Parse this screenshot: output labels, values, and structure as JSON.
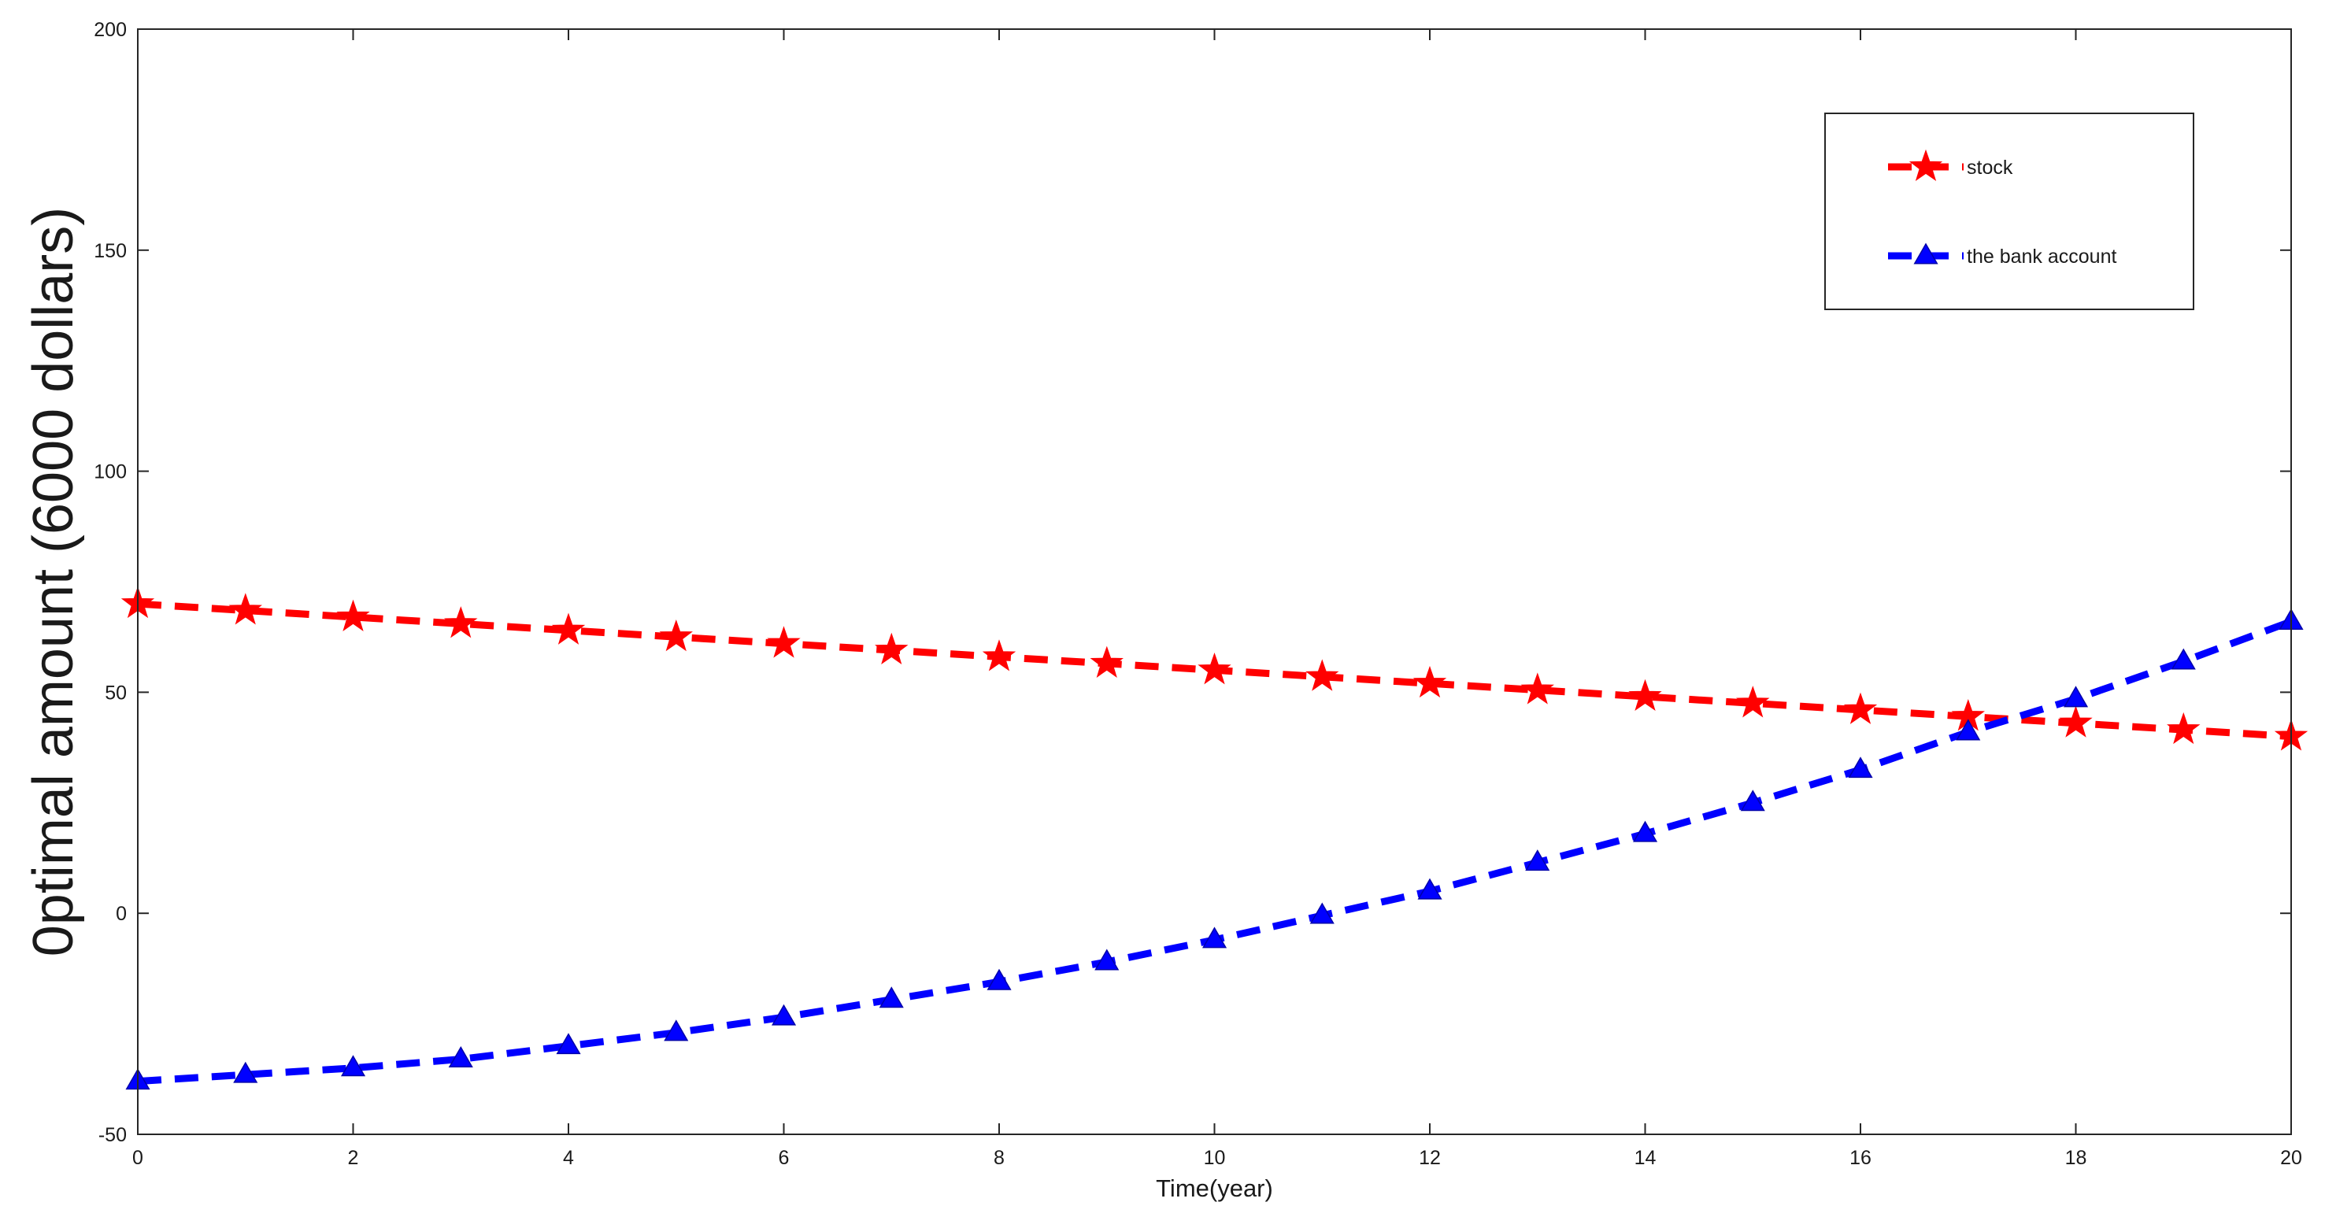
{
  "chart_data": {
    "type": "line",
    "xlabel": "Time(year)",
    "ylabel": "0ptimal amount (6000 dollars)",
    "xlim": [
      0,
      20
    ],
    "ylim": [
      -50,
      200
    ],
    "xticks": [
      0,
      2,
      4,
      6,
      8,
      10,
      12,
      14,
      16,
      18,
      20
    ],
    "yticks": [
      -50,
      0,
      50,
      100,
      150,
      200
    ],
    "grid": false,
    "legend_position": "top-right",
    "x": [
      0,
      1,
      2,
      3,
      4,
      5,
      6,
      7,
      8,
      9,
      10,
      11,
      12,
      13,
      14,
      15,
      16,
      17,
      18,
      19,
      20
    ],
    "series": [
      {
        "name": "stock",
        "color": "#ff0000",
        "marker": "star",
        "line_style": "dashed",
        "values": [
          70,
          68.5,
          67,
          65.5,
          64,
          62.5,
          61,
          59.5,
          58,
          56.5,
          55,
          53.5,
          52,
          50.5,
          49,
          47.5,
          46,
          44.5,
          43,
          41.5,
          40
        ]
      },
      {
        "name": "the bank account",
        "color": "#0000ff",
        "marker": "triangle",
        "line_style": "dashed",
        "values": [
          -38,
          -36.5,
          -35,
          -33,
          -30,
          -27,
          -23.5,
          -19.5,
          -15.5,
          -11,
          -6,
          -0.5,
          5,
          11.5,
          18,
          25,
          32.5,
          41,
          48.5,
          57,
          66
        ]
      }
    ]
  }
}
